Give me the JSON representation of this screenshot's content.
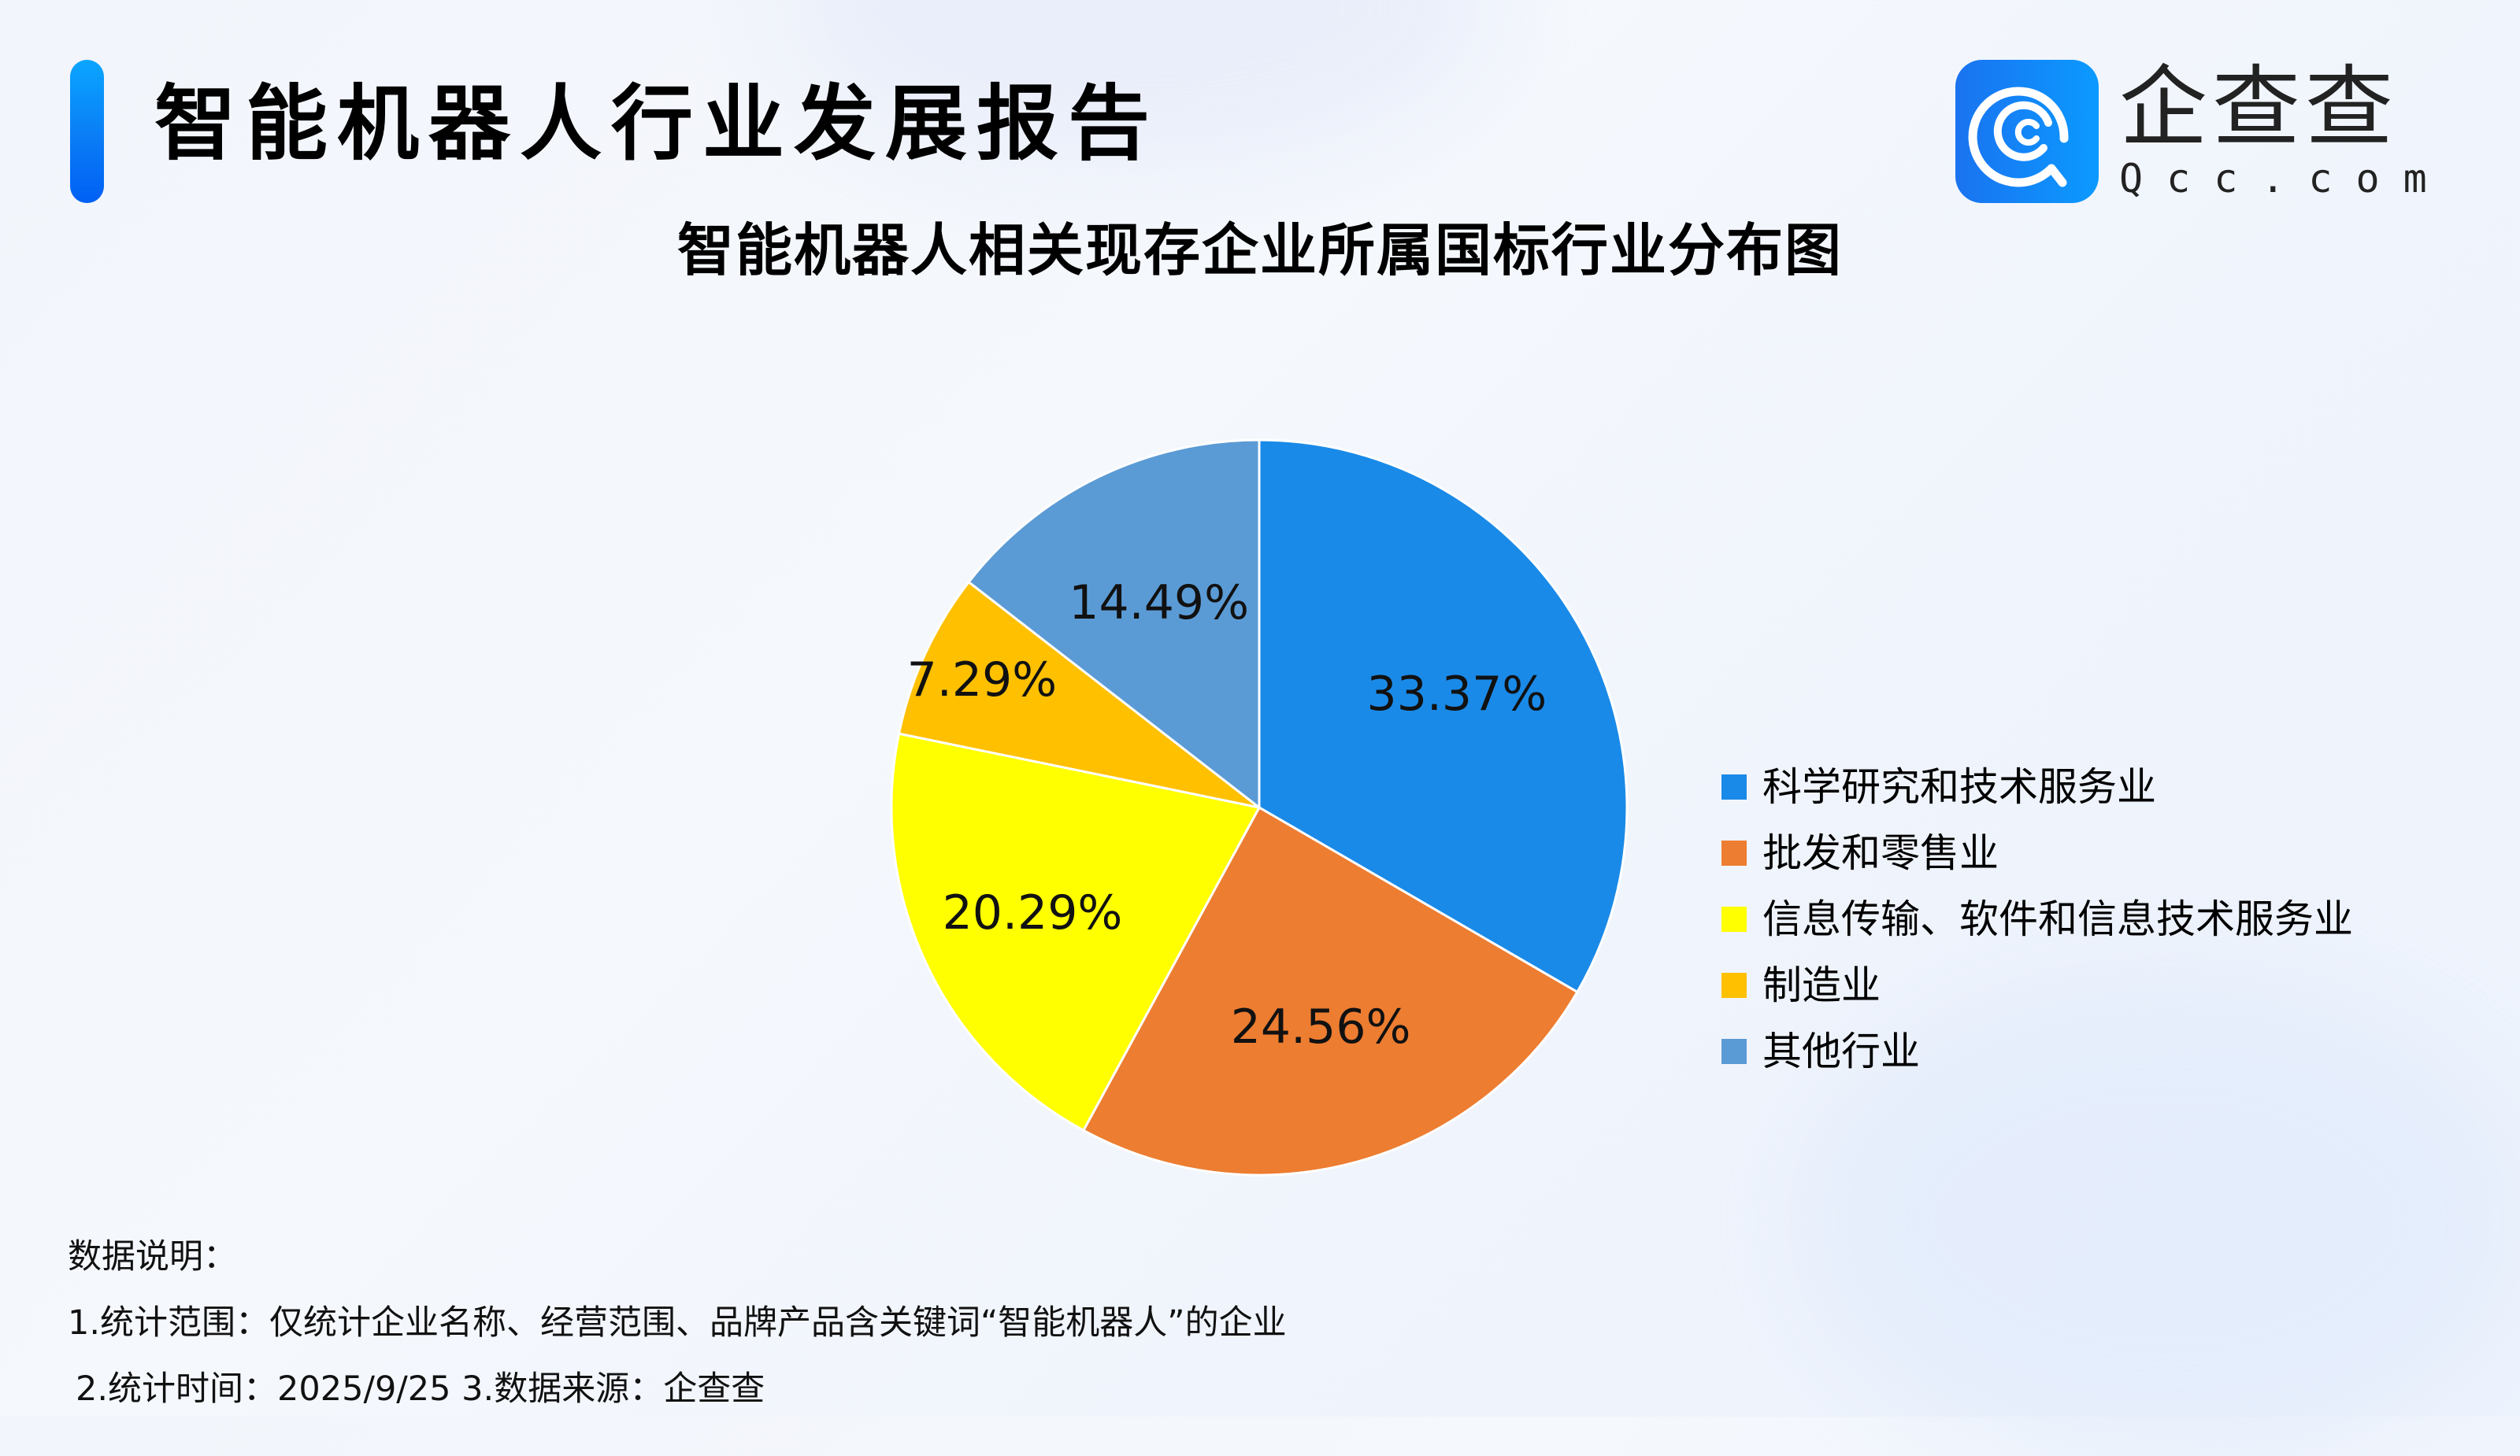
{
  "header": {
    "report_title": "智能机器人行业发展报告",
    "accent_color": "#0a7cf5"
  },
  "logo": {
    "name_cn": "企查查",
    "name_en": "Qcc.com",
    "icon": "qcc-logo-icon",
    "brand_color": "#1a7ff2"
  },
  "chart_data": {
    "type": "pie",
    "title": "智能机器人相关现存企业所属国标行业分布图",
    "categories": [
      "科学研究和技术服务业",
      "批发和零售业",
      "信息传输、软件和信息技术服务业",
      "制造业",
      "其他行业"
    ],
    "values": [
      33.37,
      24.56,
      20.29,
      7.29,
      14.49
    ],
    "labels": [
      "33.37%",
      "24.56%",
      "20.29%",
      "7.29%",
      "14.49%"
    ],
    "colors": [
      "#1a8ae8",
      "#ed7d31",
      "#ffff00",
      "#ffc000",
      "#5b9bd5"
    ],
    "unit": "%",
    "start_angle": "12 o'clock, clockwise",
    "legend_position": "right"
  },
  "legend": {
    "items": [
      {
        "label": "科学研究和技术服务业",
        "color": "#1a8ae8"
      },
      {
        "label": "批发和零售业",
        "color": "#ed7d31"
      },
      {
        "label": "信息传输、软件和信息技术服务业",
        "color": "#ffff00"
      },
      {
        "label": "制造业",
        "color": "#ffc000"
      },
      {
        "label": "其他行业",
        "color": "#5b9bd5"
      }
    ]
  },
  "notes": {
    "heading": "数据说明：",
    "line1": "1.统计范围：仅统计企业名称、经营范围、品牌产品含关键词“智能机器人”的企业",
    "line2": "2.统计时间：2025/9/25  3.数据来源：企查查"
  }
}
